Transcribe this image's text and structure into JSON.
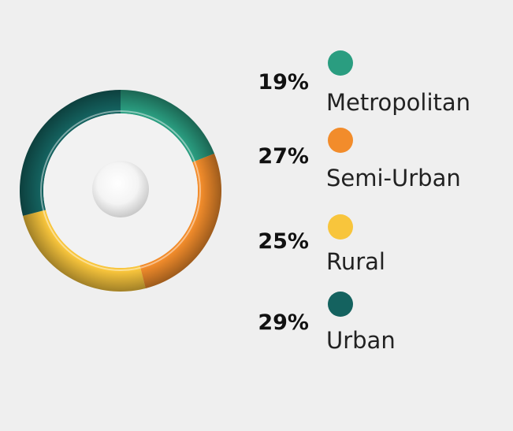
{
  "chart_data": {
    "type": "pie",
    "categories": [
      "Metropolitan",
      "Semi-Urban",
      "Rural",
      "Urban"
    ],
    "series": [
      {
        "values": [
          19,
          27,
          25,
          29
        ],
        "value_labels": [
          "19%",
          "27%",
          "25%",
          "29%"
        ]
      }
    ],
    "colors": [
      "#2a9d80",
      "#f28c2b",
      "#f8c53c",
      "#14625f"
    ],
    "donut": true
  }
}
